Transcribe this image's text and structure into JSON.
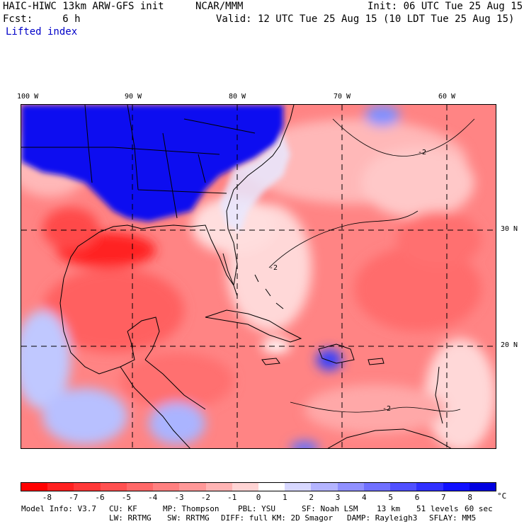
{
  "header": {
    "model": "HAIC-HIWC 13km ARW-GFS init",
    "org": "NCAR/MMM",
    "init": "Init: 06 UTC Tue 25 Aug 15",
    "fcst": "Fcst:     6 h",
    "valid": "Valid: 12 UTC Tue 25 Aug 15 (10 LDT Tue 25 Aug 15)",
    "field": "Lifted index"
  },
  "map": {
    "lon_labels": [
      "100 W",
      "90 W",
      "80 W",
      "70 W",
      "60 W"
    ],
    "lat_labels": [
      "30 N",
      "20 N"
    ],
    "contour_label": "-2"
  },
  "colorbar": {
    "labels": [
      "-8",
      "-7",
      "-6",
      "-5",
      "-4",
      "-3",
      "-2",
      "-1",
      "0",
      "1",
      "2",
      "3",
      "4",
      "5",
      "6",
      "7",
      "8"
    ],
    "unit": "°C",
    "colors": [
      "#ff0000",
      "#ff2020",
      "#ff3838",
      "#ff5050",
      "#ff6868",
      "#ff8080",
      "#ff9898",
      "#ffb4b4",
      "#ffd4d4",
      "#ffffff",
      "#d8d8ff",
      "#b4b4ff",
      "#9090ff",
      "#7070ff",
      "#5050ff",
      "#3030ff",
      "#1010ff",
      "#0000e0"
    ]
  },
  "model_info": {
    "line1": [
      "Model Info: V3.7",
      "CU: KF",
      "MP: Thompson",
      "PBL: YSU",
      "SF: Noah LSM",
      "13 km",
      "51 levels",
      "60 sec"
    ],
    "line2": [
      "LW: RRTMG",
      "SW: RRTMG",
      "DIFF: full",
      "KM: 2D Smagor",
      "DAMP: Rayleigh3",
      "SFLAY: MM5"
    ]
  }
}
